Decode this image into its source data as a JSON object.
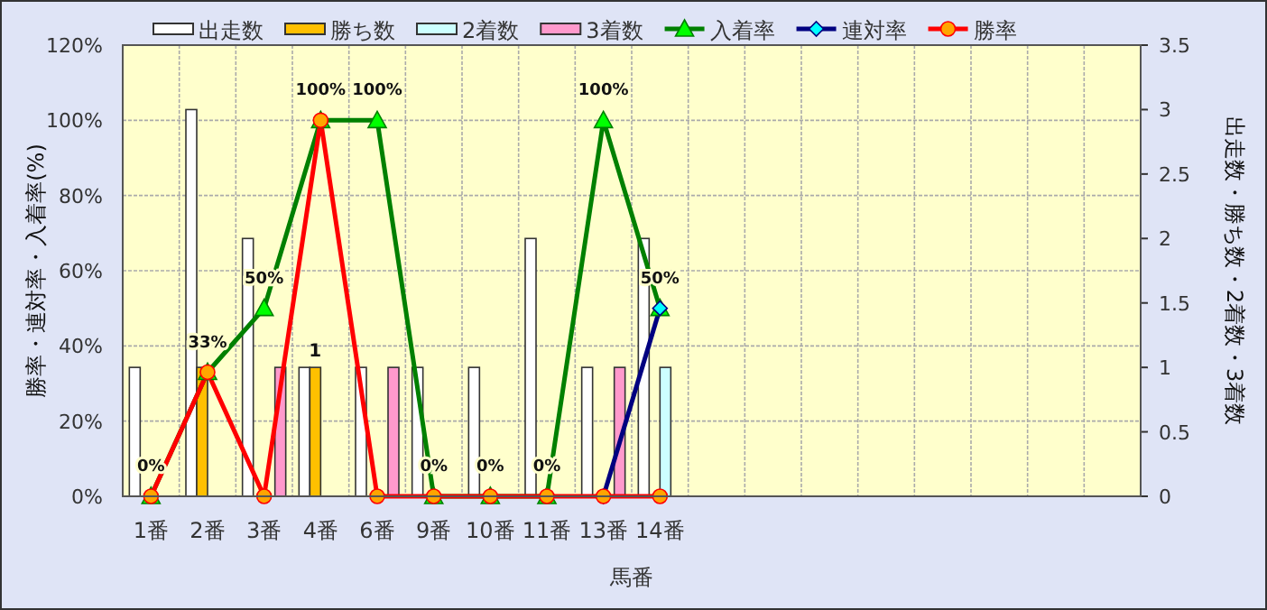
{
  "chart_data": {
    "type": "bar",
    "categories": [
      "1番",
      "2番",
      "3番",
      "4番",
      "6番",
      "9番",
      "10番",
      "11番",
      "13番",
      "14番",
      null,
      null,
      null,
      null,
      null,
      null,
      null,
      null
    ],
    "xlabel": "馬番",
    "ylabel": "勝率・連対率・入着率(%)",
    "y2label": "出走数・勝ち数・2着数・3着数",
    "ylim": [
      0,
      120
    ],
    "yticks": [
      {
        "value": 0,
        "label": "0%"
      },
      {
        "value": 20,
        "label": "20%"
      },
      {
        "value": 40,
        "label": "40%"
      },
      {
        "value": 60,
        "label": "60%"
      },
      {
        "value": 80,
        "label": "80%"
      },
      {
        "value": 100,
        "label": "100%"
      },
      {
        "value": 120,
        "label": "120%"
      }
    ],
    "y2lim": [
      0,
      3.5
    ],
    "y2ticks": [
      0,
      0.5,
      1,
      1.5,
      2,
      2.5,
      3,
      3.5
    ],
    "grid": true,
    "legend": "top",
    "series": [
      {
        "name": "出走数",
        "axis": "y2",
        "color": "#ffffff",
        "values": [
          1,
          3,
          2,
          1,
          1,
          1,
          1,
          2,
          1,
          2,
          null,
          null,
          null,
          null,
          null,
          null,
          null,
          null
        ]
      },
      {
        "name": "勝ち数",
        "axis": "y2",
        "color": "#ffc000",
        "values": [
          0,
          1,
          0,
          1,
          0,
          0,
          0,
          0,
          0,
          0,
          null,
          null,
          null,
          null,
          null,
          null,
          null,
          null
        ],
        "value_labels": [
          null,
          null,
          null,
          "1",
          null,
          null,
          null,
          null,
          null,
          null,
          null,
          null,
          null,
          null,
          null,
          null,
          null,
          null
        ]
      },
      {
        "name": "2着数",
        "axis": "y2",
        "color": "#ccffff",
        "values": [
          0,
          0,
          0,
          0,
          0,
          0,
          0,
          0,
          0,
          1,
          null,
          null,
          null,
          null,
          null,
          null,
          null,
          null
        ]
      },
      {
        "name": "3着数",
        "axis": "y2",
        "color": "#ff99cc",
        "values": [
          0,
          0,
          1,
          0,
          1,
          0,
          0,
          0,
          1,
          0,
          null,
          null,
          null,
          null,
          null,
          null,
          null,
          null
        ]
      },
      {
        "name": "入着率",
        "type": "line",
        "color": "#008000",
        "marker": "triangle",
        "values": [
          0,
          33,
          50,
          100,
          100,
          0,
          0,
          0,
          100,
          50,
          null,
          null,
          null,
          null,
          null,
          null,
          null,
          null
        ],
        "value_labels": [
          "0%",
          "33%",
          "50%",
          "100%",
          "100%",
          "0%",
          "0%",
          "0%",
          "100%",
          "50%",
          null,
          null,
          null,
          null,
          null,
          null,
          null,
          null
        ]
      },
      {
        "name": "連対率",
        "type": "line",
        "color": "#000080",
        "marker": "diamond",
        "values": [
          null,
          null,
          null,
          null,
          null,
          null,
          null,
          null,
          0,
          50,
          null,
          null,
          null,
          null,
          null,
          null,
          null,
          null
        ]
      },
      {
        "name": "勝率",
        "type": "line",
        "color": "#ff0000",
        "marker": "circle",
        "values": [
          0,
          33,
          0,
          100,
          0,
          0,
          0,
          0,
          0,
          0,
          null,
          null,
          null,
          null,
          null,
          null,
          null,
          null
        ]
      }
    ]
  }
}
